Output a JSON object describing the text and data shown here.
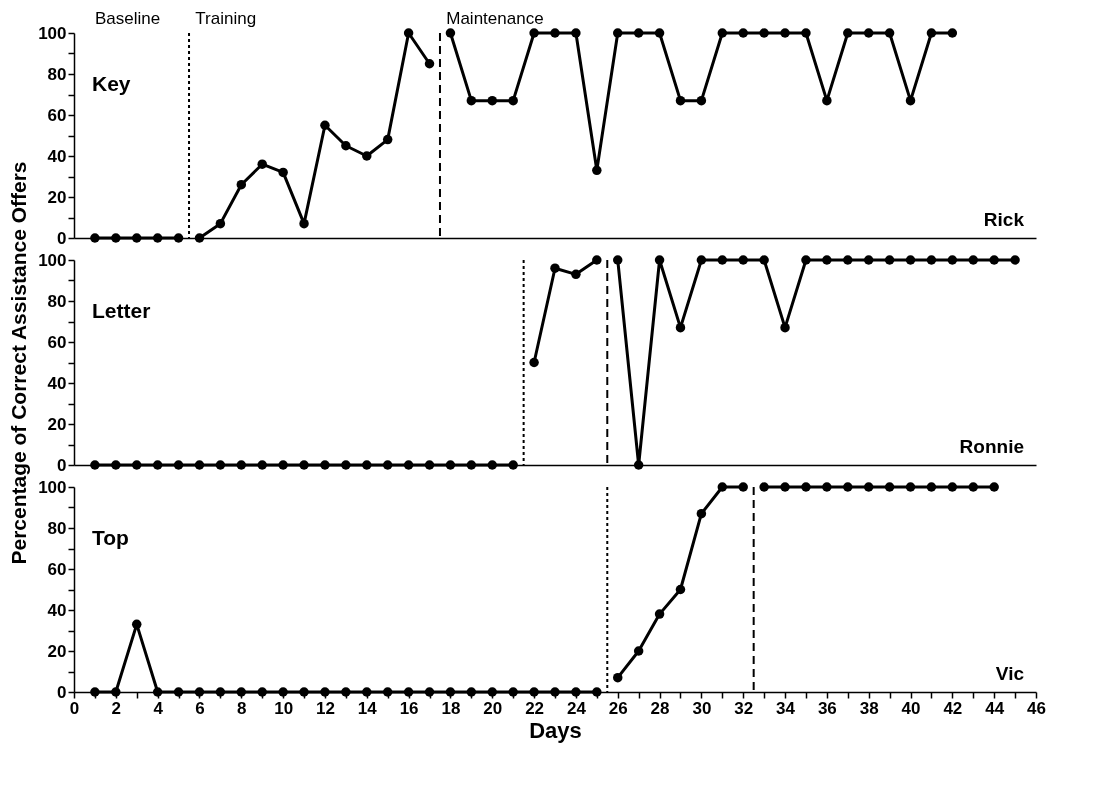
{
  "chart_data": [
    {
      "type": "line",
      "title": "Key",
      "xlim": [
        0,
        46
      ],
      "ylim": [
        0,
        100
      ],
      "yticks": [
        0,
        {
          "value": 10,
          "label": null
        },
        20,
        {
          "value": 30,
          "label": null
        },
        40,
        {
          "value": 50,
          "label": null
        },
        60,
        {
          "value": 70,
          "label": null
        },
        80,
        {
          "value": 90,
          "label": null
        },
        100
      ],
      "tick_labels": "y",
      "marker": "circle",
      "line_style": "solid",
      "annotations": [
        "Baseline",
        "Training",
        "Maintenance"
      ],
      "subtitle": "Rick",
      "ref_lines": [
        {
          "axis": "x",
          "value": 5.5,
          "line_style": "dotted"
        },
        {
          "axis": "x",
          "value": 17.5,
          "line_style": "dashed"
        }
      ],
      "series": [
        {
          "color": "#000000",
          "x": [
            1,
            2,
            3,
            4,
            5
          ],
          "values": [
            0,
            0,
            0,
            0,
            0
          ]
        },
        {
          "color": "#000000",
          "x": [
            6,
            7,
            8,
            9,
            10,
            11,
            12,
            13,
            14,
            15,
            16,
            17
          ],
          "values": [
            0,
            7,
            26,
            36,
            32,
            7,
            55,
            45,
            40,
            48,
            100,
            85
          ]
        },
        {
          "color": "#000000",
          "x": [
            18,
            19,
            20,
            21,
            22,
            23,
            24,
            25,
            26,
            27,
            28,
            29,
            30,
            31,
            32,
            33,
            34,
            35,
            36,
            37,
            38,
            39,
            40,
            41,
            42
          ],
          "values": [
            100,
            67,
            67,
            67,
            100,
            100,
            100,
            33,
            100,
            100,
            100,
            67,
            67,
            100,
            100,
            100,
            100,
            100,
            67,
            100,
            100,
            100,
            67,
            100,
            100
          ]
        }
      ]
    },
    {
      "type": "line",
      "title": "Letter",
      "xlim": [
        0,
        46
      ],
      "ylim": [
        0,
        100
      ],
      "yticks": [
        0,
        {
          "value": 10,
          "label": null
        },
        20,
        {
          "value": 30,
          "label": null
        },
        40,
        {
          "value": 50,
          "label": null
        },
        60,
        {
          "value": 70,
          "label": null
        },
        80,
        {
          "value": 90,
          "label": null
        },
        100
      ],
      "ylabel": "Percentage of Correct Assistance Offers",
      "tick_labels": "y",
      "marker": "circle",
      "line_style": "solid",
      "subtitle": "Ronnie",
      "ref_lines": [
        {
          "axis": "x",
          "value": 21.5,
          "line_style": "dotted"
        },
        {
          "axis": "x",
          "value": 25.5,
          "line_style": "dashed"
        }
      ],
      "series": [
        {
          "color": "#000000",
          "x": [
            1,
            2,
            3,
            4,
            5,
            6,
            7,
            8,
            9,
            10,
            11,
            12,
            13,
            14,
            15,
            16,
            17,
            18,
            19,
            20,
            21
          ],
          "values": [
            0,
            0,
            0,
            0,
            0,
            0,
            0,
            0,
            0,
            0,
            0,
            0,
            0,
            0,
            0,
            0,
            0,
            0,
            0,
            0,
            0
          ]
        },
        {
          "color": "#000000",
          "x": [
            22,
            23,
            24,
            25
          ],
          "values": [
            50,
            96,
            93,
            100
          ]
        },
        {
          "color": "#000000",
          "x": [
            26,
            27,
            28,
            29,
            30,
            31,
            32,
            33,
            34,
            35,
            36,
            37,
            38,
            39,
            40,
            41,
            42,
            43,
            44,
            45
          ],
          "values": [
            100,
            0,
            100,
            67,
            100,
            100,
            100,
            100,
            67,
            100,
            100,
            100,
            100,
            100,
            100,
            100,
            100,
            100,
            100,
            100
          ]
        }
      ]
    },
    {
      "type": "line",
      "title": "Top",
      "xlim": [
        0,
        46
      ],
      "ylim": [
        0,
        100
      ],
      "yticks": [
        0,
        {
          "value": 10,
          "label": null
        },
        20,
        {
          "value": 30,
          "label": null
        },
        40,
        {
          "value": 50,
          "label": null
        },
        60,
        {
          "value": 70,
          "label": null
        },
        80,
        {
          "value": 90,
          "label": null
        },
        100
      ],
      "xticks": [
        0,
        {
          "value": 1,
          "label": null
        },
        2,
        {
          "value": 3,
          "label": null
        },
        4,
        {
          "value": 5,
          "label": null
        },
        6,
        {
          "value": 7,
          "label": null
        },
        8,
        {
          "value": 9,
          "label": null
        },
        10,
        {
          "value": 11,
          "label": null
        },
        12,
        {
          "value": 13,
          "label": null
        },
        14,
        {
          "value": 15,
          "label": null
        },
        16,
        {
          "value": 17,
          "label": null
        },
        18,
        {
          "value": 19,
          "label": null
        },
        20,
        {
          "value": 21,
          "label": null
        },
        22,
        {
          "value": 23,
          "label": null
        },
        24,
        {
          "value": 25,
          "label": null
        },
        26,
        {
          "value": 27,
          "label": null
        },
        28,
        {
          "value": 29,
          "label": null
        },
        30,
        {
          "value": 31,
          "label": null
        },
        32,
        {
          "value": 33,
          "label": null
        },
        34,
        {
          "value": 35,
          "label": null
        },
        36,
        {
          "value": 37,
          "label": null
        },
        38,
        {
          "value": 39,
          "label": null
        },
        40,
        {
          "value": 41,
          "label": null
        },
        42,
        {
          "value": 43,
          "label": null
        },
        44,
        {
          "value": 45,
          "label": null
        },
        46
      ],
      "xlabel": "Days",
      "marker": "circle",
      "line_style": "solid",
      "subtitle": "Vic",
      "ref_lines": [
        {
          "axis": "x",
          "value": 25.5,
          "line_style": "dotted"
        },
        {
          "axis": "x",
          "value": 32.5,
          "line_style": "dashed"
        }
      ],
      "series": [
        {
          "color": "#000000",
          "x": [
            1,
            2,
            3,
            4,
            5,
            6,
            7,
            8,
            9,
            10,
            11,
            12,
            13,
            14,
            15,
            16,
            17,
            18,
            19,
            20,
            21,
            22,
            23,
            24,
            25
          ],
          "values": [
            0,
            0,
            33,
            0,
            0,
            0,
            0,
            0,
            0,
            0,
            0,
            0,
            0,
            0,
            0,
            0,
            0,
            0,
            0,
            0,
            0,
            0,
            0,
            0,
            0
          ]
        },
        {
          "color": "#000000",
          "x": [
            26,
            27,
            28,
            29,
            30,
            31,
            32
          ],
          "values": [
            7,
            20,
            38,
            50,
            87,
            100,
            100
          ]
        },
        {
          "color": "#000000",
          "x": [
            33,
            34,
            35,
            36,
            37,
            38,
            39,
            40,
            41,
            42,
            43,
            44
          ],
          "values": [
            100,
            100,
            100,
            100,
            100,
            100,
            100,
            100,
            100,
            100,
            100,
            100
          ]
        }
      ]
    }
  ]
}
